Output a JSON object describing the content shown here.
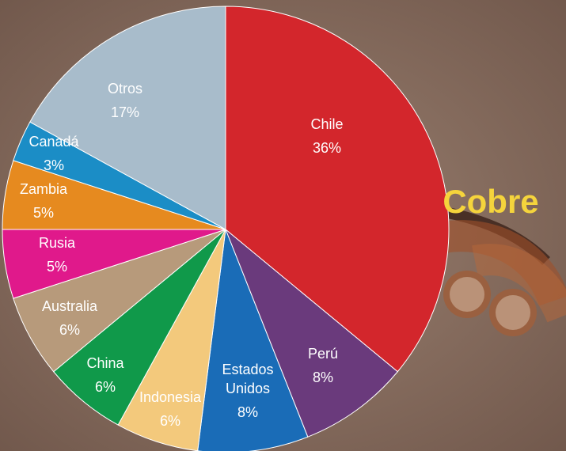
{
  "chart_data": {
    "type": "pie",
    "title": "Cobre",
    "categories": [
      "Chile",
      "Perú",
      "Estados Unidos",
      "Indonesia",
      "China",
      "Australia",
      "Rusia",
      "Zambia",
      "Canadá",
      "Otros"
    ],
    "values": [
      36,
      8,
      8,
      6,
      6,
      6,
      5,
      5,
      3,
      17
    ],
    "value_labels": [
      "36%",
      "8%",
      "8%",
      "6%",
      "6%",
      "6%",
      "5%",
      "5%",
      "3%",
      "17%"
    ],
    "colors": [
      "#d3262c",
      "#6a3a7c",
      "#1a6cb7",
      "#f3c97c",
      "#10994a",
      "#b79a7b",
      "#e0198b",
      "#e68a1f",
      "#1b8dc6",
      "#a8bccb"
    ]
  }
}
